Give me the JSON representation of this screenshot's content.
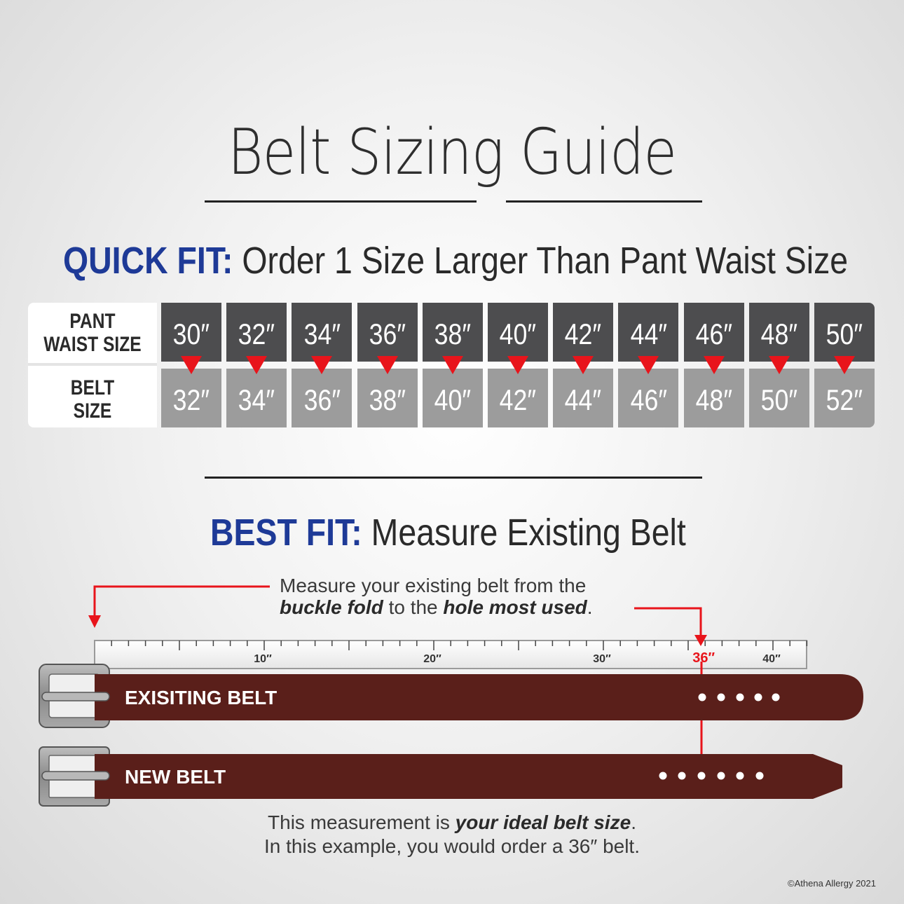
{
  "title": "Belt Sizing Guide",
  "quick_fit": {
    "lead": "QUICK FIT:",
    "text": "Order 1 Size Larger Than Pant Waist Size",
    "row_label_pant": "PANT\nWAIST SIZE",
    "row_label_belt": "BELT\nSIZE",
    "pant_sizes": [
      "30″",
      "32″",
      "34″",
      "36″",
      "38″",
      "40″",
      "42″",
      "44″",
      "46″",
      "48″",
      "50″"
    ],
    "belt_sizes": [
      "32″",
      "34″",
      "36″",
      "38″",
      "40″",
      "42″",
      "44″",
      "46″",
      "48″",
      "50″",
      "52″"
    ]
  },
  "best_fit": {
    "lead": "BEST FIT:",
    "text": "Measure Existing Belt",
    "instruction_line1": "Measure your existing belt from the",
    "instruction_bold1": "buckle fold",
    "instruction_mid": " to the ",
    "instruction_bold2": "hole most used",
    "instruction_end": ".",
    "ruler_ticks": [
      "10″",
      "20″",
      "30″",
      "36″",
      "40″"
    ],
    "highlight_tick": "36″",
    "existing_belt_label": "EXISITING BELT",
    "new_belt_label": "NEW BELT",
    "result_pre": "This measurement is ",
    "result_bold": "your ideal belt size",
    "result_end": ".",
    "result_line2": "In this example, you would order a 36″ belt."
  },
  "colors": {
    "heading_blue": "#1e3a97",
    "arrow_red": "#e8141b",
    "belt_brown": "#5a1f1a",
    "dark_cell": "#4d4d4f",
    "light_cell": "#9c9c9c"
  },
  "copyright": "©Athena Allergy 2021"
}
